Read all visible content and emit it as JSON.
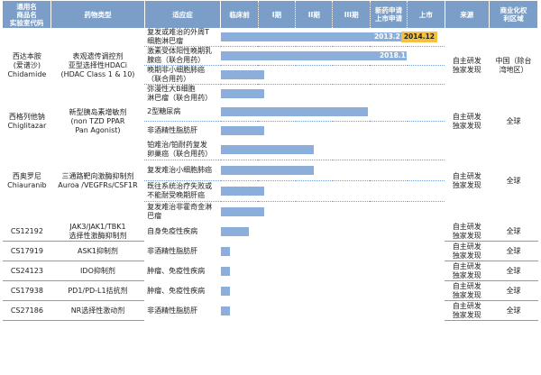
{
  "headers": {
    "name": "通用名\n商品名\n实验室代码",
    "type": "药物类型",
    "indication": "适应症",
    "preclinical": "临床前",
    "phase1": "I期",
    "phase2": "II期",
    "phase3": "III期",
    "nda": "新药申请\n上市申请",
    "market": "上市",
    "source": "来源",
    "region": "商业化权\n利区域"
  },
  "colors": {
    "header_bg": "#7a9ec7",
    "bar": "#8caedb",
    "marketed_highlight": "#f4c042",
    "divider": "#7a9ec7"
  },
  "drugs": [
    {
      "name_cn": "西达本胺\n(爱谱沙)",
      "name_en": "Chidamide",
      "type": "表观遗传调控剂\n亚型选择性HDACi\n(HDAC Class 1 & 10)",
      "source": "自主研发\n独家发现",
      "region": "中国（除台\n湾地区）",
      "indications": [
        {
          "text": "复发或难治的外周T\n细胞淋巴瘤",
          "progress": 1.0,
          "date_label": "2013.2",
          "market_label": "2014.12"
        },
        {
          "text": "激素受体阳性晚期乳\n腺癌（联合用药）",
          "progress": 0.86,
          "date_label": "2018.11"
        },
        {
          "text": "晚期非小细胞肺癌\n（联合用药）",
          "progress": 0.2
        },
        {
          "text": "弥漫性大B细胞\n淋巴瘤（联合用药）",
          "progress": 0.2
        }
      ]
    },
    {
      "name_cn": "西格列他钠",
      "name_en": "Chiglitazar",
      "type": "新型胰岛素增敏剂\n(non TZD PPAR\nPan Agonist)",
      "source": "自主研发\n独家发现",
      "region": "全球",
      "indications": [
        {
          "text": "2型糖尿病",
          "progress": 0.68
        },
        {
          "text": "非酒精性脂肪肝",
          "progress": 0.2
        }
      ]
    },
    {
      "name_cn": "西奥罗尼",
      "name_en": "Chiauranib",
      "type": "三通路靶向激酶抑制剂\nAuroa /VEGFRs/CSF1R",
      "source": "自主研发\n独家发现",
      "region": "全球",
      "indications": [
        {
          "text": "铂难治/铂耐药复发\n卵巢癌（联合用药）",
          "progress": 0.43
        },
        {
          "text": "复发难治小细胞肺癌",
          "progress": 0.43
        },
        {
          "text": "既往系统治疗失败或\n不能耐受晚期肝癌",
          "progress": 0.2
        },
        {
          "text": "复发难治非霍奇金淋\n巴瘤",
          "progress": 0.2
        }
      ]
    },
    {
      "name_cn": "CS12192",
      "name_en": "",
      "type": "JAK3/JAK1/TBK1\n选择性激酶抑制剂",
      "source": "自主研发\n独家发现",
      "region": "全球",
      "indications": [
        {
          "text": "自身免疫性疾病",
          "progress": 0.13
        }
      ]
    },
    {
      "name_cn": "CS17919",
      "name_en": "",
      "type": "ASK1抑制剂",
      "source": "自主研发\n独家发现",
      "region": "全球",
      "indications": [
        {
          "text": "非酒精性脂肪肝",
          "progress": 0.04
        }
      ]
    },
    {
      "name_cn": "CS24123",
      "name_en": "",
      "type": "IDO抑制剂",
      "source": "自主研发\n独家发现",
      "region": "全球",
      "indications": [
        {
          "text": "肿瘤、免疫性疾病",
          "progress": 0.04
        }
      ]
    },
    {
      "name_cn": "CS17938",
      "name_en": "",
      "type": "PD1/PD-L1拮抗剂",
      "source": "自主研发\n独家发现",
      "region": "全球",
      "indications": [
        {
          "text": "肿瘤、免疫性疾病",
          "progress": 0.04
        }
      ]
    },
    {
      "name_cn": "CS27186",
      "name_en": "",
      "type": "NR选择性激动剂",
      "source": "自主研发\n独家发现",
      "region": "全球",
      "indications": [
        {
          "text": "非酒精性脂肪肝",
          "progress": 0.04
        }
      ]
    }
  ]
}
